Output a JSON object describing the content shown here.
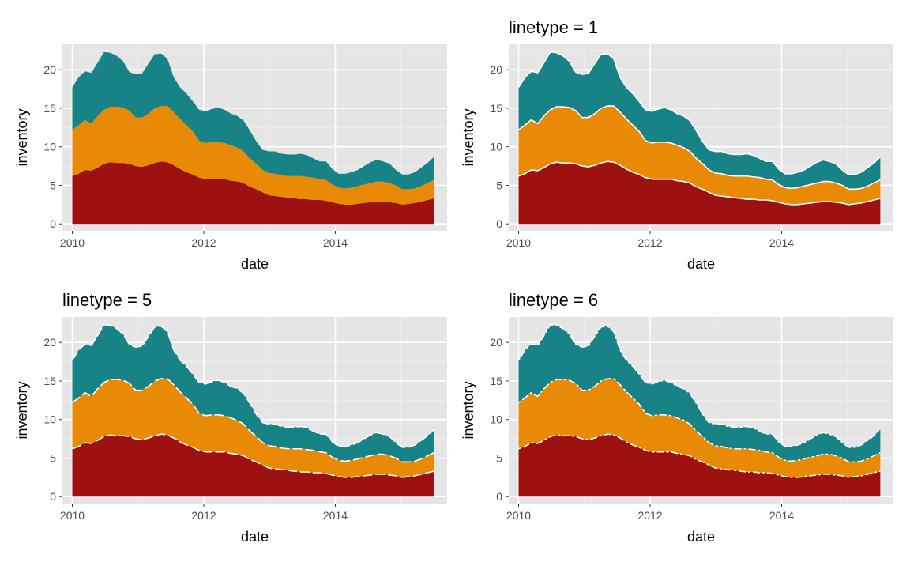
{
  "colors": {
    "panel_bg": "#e5e5e5",
    "grid_major": "#ffffff",
    "grid_minor": "#f0f0f0",
    "tick_text": "#4d4d4d",
    "bottom_fill": "#9d1111",
    "middle_fill": "#e88a05",
    "top_fill": "#178387",
    "outline": "#ffffff"
  },
  "chart_data": [
    {
      "type": "area",
      "stacked": true,
      "title": "",
      "outline": "none",
      "xlabel": "date",
      "ylabel": "inventory",
      "xlim": [
        2009.85,
        2015.7
      ],
      "ylim": [
        -0.9,
        23.3
      ],
      "x_ticks": [
        2010,
        2012,
        2014
      ],
      "y_ticks": [
        0,
        5,
        10,
        15,
        20
      ],
      "grid": true,
      "series": [
        {
          "values": [
            6.2,
            6.5,
            7.0,
            6.9,
            7.3,
            7.8,
            8.0,
            7.9,
            7.9,
            7.8,
            7.5,
            7.4,
            7.6,
            7.9,
            8.1,
            8.0,
            7.6,
            7.1,
            6.7,
            6.4,
            6.0,
            5.8,
            5.8,
            5.8,
            5.8,
            5.6,
            5.5,
            5.3,
            4.8,
            4.5,
            4.1,
            3.7,
            3.6,
            3.5,
            3.4,
            3.3,
            3.2,
            3.2,
            3.1,
            3.1,
            3.0,
            2.8,
            2.6,
            2.5,
            2.5,
            2.6,
            2.7,
            2.8,
            2.9,
            2.9,
            2.8,
            2.7,
            2.5,
            2.6,
            2.7,
            2.9,
            3.1,
            3.3
          ]
        },
        {
          "values": [
            6.0,
            6.3,
            6.5,
            6.1,
            6.7,
            7.0,
            7.2,
            7.3,
            7.2,
            6.9,
            6.3,
            6.4,
            6.7,
            7.1,
            7.2,
            7.3,
            6.9,
            6.5,
            6.1,
            5.6,
            4.8,
            4.7,
            4.8,
            4.8,
            4.7,
            4.6,
            4.4,
            4.1,
            3.7,
            3.3,
            2.9,
            2.9,
            2.9,
            2.8,
            2.8,
            2.9,
            3.0,
            2.9,
            2.9,
            2.7,
            2.7,
            2.3,
            2.1,
            2.1,
            2.2,
            2.3,
            2.4,
            2.5,
            2.6,
            2.6,
            2.5,
            2.3,
            2.0,
            1.9,
            1.9,
            2.0,
            2.2,
            2.4
          ]
        },
        {
          "values": [
            5.5,
            6.2,
            6.3,
            6.6,
            6.9,
            7.5,
            7.0,
            6.6,
            6.0,
            5.0,
            5.6,
            5.7,
            6.5,
            7.0,
            6.8,
            6.1,
            4.5,
            4.1,
            4.1,
            3.9,
            4.0,
            4.1,
            4.3,
            4.5,
            4.3,
            4.1,
            4.1,
            4.0,
            3.6,
            2.9,
            2.6,
            2.8,
            2.9,
            2.8,
            2.8,
            2.8,
            2.9,
            2.8,
            2.5,
            2.3,
            2.4,
            2.0,
            1.8,
            1.9,
            2.0,
            2.1,
            2.4,
            2.7,
            2.8,
            2.6,
            2.5,
            2.0,
            1.9,
            1.9,
            2.1,
            2.4,
            2.6,
            3.0
          ]
        }
      ]
    },
    {
      "type": "area",
      "stacked": true,
      "title": "linetype = 1",
      "outline": "solid",
      "xlabel": "date",
      "ylabel": "inventory",
      "xlim": [
        2009.85,
        2015.7
      ],
      "ylim": [
        -0.9,
        23.3
      ],
      "x_ticks": [
        2010,
        2012,
        2014
      ],
      "y_ticks": [
        0,
        5,
        10,
        15,
        20
      ],
      "grid": true,
      "series": [
        {
          "values": [
            6.2,
            6.5,
            7.0,
            6.9,
            7.3,
            7.8,
            8.0,
            7.9,
            7.9,
            7.8,
            7.5,
            7.4,
            7.6,
            7.9,
            8.1,
            8.0,
            7.6,
            7.1,
            6.7,
            6.4,
            6.0,
            5.8,
            5.8,
            5.8,
            5.8,
            5.6,
            5.5,
            5.3,
            4.8,
            4.5,
            4.1,
            3.7,
            3.6,
            3.5,
            3.4,
            3.3,
            3.2,
            3.2,
            3.1,
            3.1,
            3.0,
            2.8,
            2.6,
            2.5,
            2.5,
            2.6,
            2.7,
            2.8,
            2.9,
            2.9,
            2.8,
            2.7,
            2.5,
            2.6,
            2.7,
            2.9,
            3.1,
            3.3
          ]
        },
        {
          "values": [
            6.0,
            6.3,
            6.5,
            6.1,
            6.7,
            7.0,
            7.2,
            7.3,
            7.2,
            6.9,
            6.3,
            6.4,
            6.7,
            7.1,
            7.2,
            7.3,
            6.9,
            6.5,
            6.1,
            5.6,
            4.8,
            4.7,
            4.8,
            4.8,
            4.7,
            4.6,
            4.4,
            4.1,
            3.7,
            3.3,
            2.9,
            2.9,
            2.9,
            2.8,
            2.8,
            2.9,
            3.0,
            2.9,
            2.9,
            2.7,
            2.7,
            2.3,
            2.1,
            2.1,
            2.2,
            2.3,
            2.4,
            2.5,
            2.6,
            2.6,
            2.5,
            2.3,
            2.0,
            1.9,
            1.9,
            2.0,
            2.2,
            2.4
          ]
        },
        {
          "values": [
            5.5,
            6.2,
            6.3,
            6.6,
            6.9,
            7.5,
            7.0,
            6.6,
            6.0,
            5.0,
            5.6,
            5.7,
            6.5,
            7.0,
            6.8,
            6.1,
            4.5,
            4.1,
            4.1,
            3.9,
            4.0,
            4.1,
            4.3,
            4.5,
            4.3,
            4.1,
            4.1,
            4.0,
            3.6,
            2.9,
            2.6,
            2.8,
            2.9,
            2.8,
            2.8,
            2.8,
            2.9,
            2.8,
            2.5,
            2.3,
            2.4,
            2.0,
            1.8,
            1.9,
            2.0,
            2.1,
            2.4,
            2.7,
            2.8,
            2.6,
            2.5,
            2.0,
            1.9,
            1.9,
            2.1,
            2.4,
            2.6,
            3.0
          ]
        }
      ]
    },
    {
      "type": "area",
      "stacked": true,
      "title": "linetype = 5",
      "outline": "long-dash",
      "xlabel": "date",
      "ylabel": "inventory",
      "xlim": [
        2009.85,
        2015.7
      ],
      "ylim": [
        -0.9,
        23.3
      ],
      "x_ticks": [
        2010,
        2012,
        2014
      ],
      "y_ticks": [
        0,
        5,
        10,
        15,
        20
      ],
      "grid": true,
      "series": [
        {
          "values": [
            6.2,
            6.5,
            7.0,
            6.9,
            7.3,
            7.8,
            8.0,
            7.9,
            7.9,
            7.8,
            7.5,
            7.4,
            7.6,
            7.9,
            8.1,
            8.0,
            7.6,
            7.1,
            6.7,
            6.4,
            6.0,
            5.8,
            5.8,
            5.8,
            5.8,
            5.6,
            5.5,
            5.3,
            4.8,
            4.5,
            4.1,
            3.7,
            3.6,
            3.5,
            3.4,
            3.3,
            3.2,
            3.2,
            3.1,
            3.1,
            3.0,
            2.8,
            2.6,
            2.5,
            2.5,
            2.6,
            2.7,
            2.8,
            2.9,
            2.9,
            2.8,
            2.7,
            2.5,
            2.6,
            2.7,
            2.9,
            3.1,
            3.3
          ]
        },
        {
          "values": [
            6.0,
            6.3,
            6.5,
            6.1,
            6.7,
            7.0,
            7.2,
            7.3,
            7.2,
            6.9,
            6.3,
            6.4,
            6.7,
            7.1,
            7.2,
            7.3,
            6.9,
            6.5,
            6.1,
            5.6,
            4.8,
            4.7,
            4.8,
            4.8,
            4.7,
            4.6,
            4.4,
            4.1,
            3.7,
            3.3,
            2.9,
            2.9,
            2.9,
            2.8,
            2.8,
            2.9,
            3.0,
            2.9,
            2.9,
            2.7,
            2.7,
            2.3,
            2.1,
            2.1,
            2.2,
            2.3,
            2.4,
            2.5,
            2.6,
            2.6,
            2.5,
            2.3,
            2.0,
            1.9,
            1.9,
            2.0,
            2.2,
            2.4
          ]
        },
        {
          "values": [
            5.5,
            6.2,
            6.3,
            6.6,
            6.9,
            7.5,
            7.0,
            6.6,
            6.0,
            5.0,
            5.6,
            5.7,
            6.5,
            7.0,
            6.8,
            6.1,
            4.5,
            4.1,
            4.1,
            3.9,
            4.0,
            4.1,
            4.3,
            4.5,
            4.3,
            4.1,
            4.1,
            4.0,
            3.6,
            2.9,
            2.6,
            2.8,
            2.9,
            2.8,
            2.8,
            2.8,
            2.9,
            2.8,
            2.5,
            2.3,
            2.4,
            2.0,
            1.8,
            1.9,
            2.0,
            2.1,
            2.4,
            2.7,
            2.8,
            2.6,
            2.5,
            2.0,
            1.9,
            1.9,
            2.1,
            2.4,
            2.6,
            3.0
          ]
        }
      ]
    },
    {
      "type": "area",
      "stacked": true,
      "title": "linetype = 6",
      "outline": "dash-dot",
      "xlabel": "date",
      "ylabel": "inventory",
      "xlim": [
        2009.85,
        2015.7
      ],
      "ylim": [
        -0.9,
        23.3
      ],
      "x_ticks": [
        2010,
        2012,
        2014
      ],
      "y_ticks": [
        0,
        5,
        10,
        15,
        20
      ],
      "grid": true,
      "series": [
        {
          "values": [
            6.2,
            6.5,
            7.0,
            6.9,
            7.3,
            7.8,
            8.0,
            7.9,
            7.9,
            7.8,
            7.5,
            7.4,
            7.6,
            7.9,
            8.1,
            8.0,
            7.6,
            7.1,
            6.7,
            6.4,
            6.0,
            5.8,
            5.8,
            5.8,
            5.8,
            5.6,
            5.5,
            5.3,
            4.8,
            4.5,
            4.1,
            3.7,
            3.6,
            3.5,
            3.4,
            3.3,
            3.2,
            3.2,
            3.1,
            3.1,
            3.0,
            2.8,
            2.6,
            2.5,
            2.5,
            2.6,
            2.7,
            2.8,
            2.9,
            2.9,
            2.8,
            2.7,
            2.5,
            2.6,
            2.7,
            2.9,
            3.1,
            3.3
          ]
        },
        {
          "values": [
            6.0,
            6.3,
            6.5,
            6.1,
            6.7,
            7.0,
            7.2,
            7.3,
            7.2,
            6.9,
            6.3,
            6.4,
            6.7,
            7.1,
            7.2,
            7.3,
            6.9,
            6.5,
            6.1,
            5.6,
            4.8,
            4.7,
            4.8,
            4.8,
            4.7,
            4.6,
            4.4,
            4.1,
            3.7,
            3.3,
            2.9,
            2.9,
            2.9,
            2.8,
            2.8,
            2.9,
            3.0,
            2.9,
            2.9,
            2.7,
            2.7,
            2.3,
            2.1,
            2.1,
            2.2,
            2.3,
            2.4,
            2.5,
            2.6,
            2.6,
            2.5,
            2.3,
            2.0,
            1.9,
            1.9,
            2.0,
            2.2,
            2.4
          ]
        },
        {
          "values": [
            5.5,
            6.2,
            6.3,
            6.6,
            6.9,
            7.5,
            7.0,
            6.6,
            6.0,
            5.0,
            5.6,
            5.7,
            6.5,
            7.0,
            6.8,
            6.1,
            4.5,
            4.1,
            4.1,
            3.9,
            4.0,
            4.1,
            4.3,
            4.5,
            4.3,
            4.1,
            4.1,
            4.0,
            3.6,
            2.9,
            2.6,
            2.8,
            2.9,
            2.8,
            2.8,
            2.8,
            2.9,
            2.8,
            2.5,
            2.3,
            2.4,
            2.0,
            1.8,
            1.9,
            2.0,
            2.1,
            2.4,
            2.7,
            2.8,
            2.6,
            2.5,
            2.0,
            1.9,
            1.9,
            2.1,
            2.4,
            2.6,
            3.0
          ]
        }
      ]
    }
  ]
}
